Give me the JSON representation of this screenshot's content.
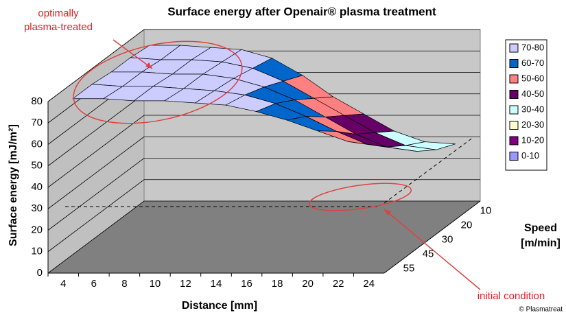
{
  "chart_data": {
    "type": "surface3d",
    "title": "Surface energy after Openair® plasma treatment",
    "xlabel": "Distance [mm]",
    "ylabel": "Surface energy [mJ/m²]",
    "depth_label": [
      "Speed",
      "[m/min]"
    ],
    "categories": [
      "4",
      "6",
      "8",
      "10",
      "12",
      "14",
      "16",
      "18",
      "20",
      "22",
      "24"
    ],
    "depth_categories": [
      "10",
      "20",
      "30",
      "45",
      "55"
    ],
    "series": [
      {
        "name": "10",
        "values": [
          76,
          76,
          75,
          74,
          70,
          62,
          52,
          44,
          36,
          31,
          30
        ]
      },
      {
        "name": "20",
        "values": [
          77,
          76,
          76,
          75,
          72,
          66,
          58,
          50,
          42,
          36,
          34
        ]
      },
      {
        "name": "30",
        "values": [
          77,
          77,
          76,
          76,
          74,
          70,
          64,
          56,
          48,
          42,
          40
        ]
      },
      {
        "name": "45",
        "values": [
          78,
          77,
          77,
          76,
          75,
          73,
          69,
          63,
          56,
          50,
          48
        ]
      },
      {
        "name": "55",
        "values": [
          78,
          78,
          77,
          77,
          76,
          75,
          72,
          68,
          63,
          58,
          56
        ]
      }
    ],
    "bands": [
      {
        "name": "70-80",
        "color": "#ccccff"
      },
      {
        "name": "60-70",
        "color": "#0066cc"
      },
      {
        "name": "50-60",
        "color": "#ff8080"
      },
      {
        "name": "40-50",
        "color": "#660066"
      },
      {
        "name": "30-40",
        "color": "#ccffff"
      },
      {
        "name": "20-30",
        "color": "#ffffcc"
      },
      {
        "name": "10-20",
        "color": "#800080"
      },
      {
        "name": "0-10",
        "color": "#9999ff"
      }
    ],
    "ylim": [
      0,
      80
    ],
    "yticks": [
      0,
      10,
      20,
      30,
      40,
      50,
      60,
      70,
      80
    ],
    "grid": true,
    "annotations": {
      "optimal": [
        "optimally",
        "plasma-treated"
      ],
      "initial": "initial condition",
      "copyright": "© Plasmatreat"
    }
  }
}
